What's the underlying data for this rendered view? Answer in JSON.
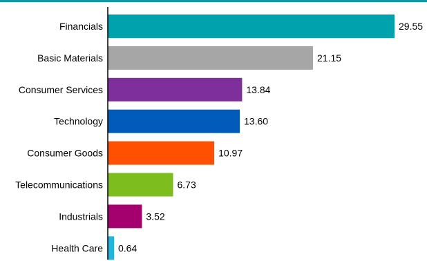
{
  "chart_data": {
    "type": "bar",
    "orientation": "horizontal",
    "categories": [
      "Financials",
      "Basic Materials",
      "Consumer Services",
      "Technology",
      "Consumer Goods",
      "Telecommunications",
      "Industrials",
      "Health Care"
    ],
    "values": [
      29.55,
      21.15,
      13.84,
      13.6,
      10.97,
      6.73,
      3.52,
      0.64
    ],
    "value_labels": [
      "29.55",
      "21.15",
      "13.84",
      "13.60",
      "10.97",
      "6.73",
      "3.52",
      "0.64"
    ],
    "colors": [
      "#00a3ad",
      "#a6a6a6",
      "#7e2f9c",
      "#005bbb",
      "#ff4f00",
      "#7dbd1e",
      "#a4006e",
      "#1fb7e0"
    ],
    "xlim": [
      0,
      29.55
    ],
    "grid": false,
    "legend": "none"
  },
  "style": {
    "top_rule_color": "#0b9aa8",
    "axis_color": "#000000"
  }
}
